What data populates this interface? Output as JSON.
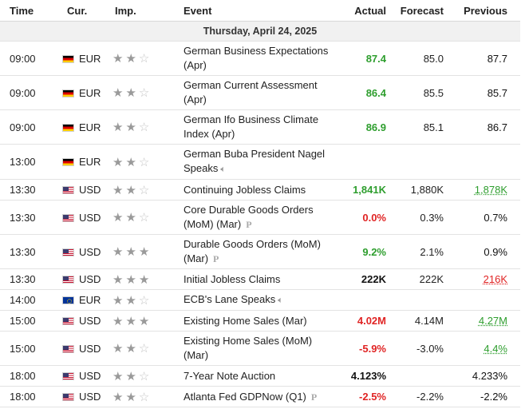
{
  "headers": {
    "time": "Time",
    "currency": "Cur.",
    "importance": "Imp.",
    "event": "Event",
    "actual": "Actual",
    "forecast": "Forecast",
    "previous": "Previous"
  },
  "day_label": "Thursday, April 24, 2025",
  "colors": {
    "positive": "#2e9e2e",
    "negative": "#e02424",
    "star_on": "#9a9a9a",
    "star_off": "#c4c4c4"
  },
  "rows": [
    {
      "time": "09:00",
      "flag": "germany-flag-icon",
      "currency": "EUR",
      "stars": 2,
      "event_line1": "German Business Expectations",
      "event_line2": "(Apr)",
      "icon": "",
      "actual": "87.4",
      "actual_color": "green",
      "forecast": "85.0",
      "previous": "87.7",
      "previous_style": "black"
    },
    {
      "time": "09:00",
      "flag": "germany-flag-icon",
      "currency": "EUR",
      "stars": 2,
      "event_line1": "German Current Assessment",
      "event_line2": "(Apr)",
      "icon": "",
      "actual": "86.4",
      "actual_color": "green",
      "forecast": "85.5",
      "previous": "85.7",
      "previous_style": "black"
    },
    {
      "time": "09:00",
      "flag": "germany-flag-icon",
      "currency": "EUR",
      "stars": 2,
      "event_line1": "German Ifo Business Climate",
      "event_line2": "Index (Apr)",
      "icon": "",
      "actual": "86.9",
      "actual_color": "green",
      "forecast": "85.1",
      "previous": "86.7",
      "previous_style": "black"
    },
    {
      "time": "13:00",
      "flag": "germany-flag-icon",
      "currency": "EUR",
      "stars": 2,
      "event_line1": "German Buba President Nagel",
      "event_line2": "Speaks",
      "icon": "speaker",
      "actual": "",
      "actual_color": "black",
      "forecast": "",
      "previous": "",
      "previous_style": "black"
    },
    {
      "time": "13:30",
      "flag": "us-flag-icon",
      "currency": "USD",
      "stars": 2,
      "event_line1": "Continuing Jobless Claims",
      "event_line2": "",
      "icon": "",
      "actual": "1,841K",
      "actual_color": "green",
      "forecast": "1,880K",
      "previous": "1,878K",
      "previous_style": "ul-green"
    },
    {
      "time": "13:30",
      "flag": "us-flag-icon",
      "currency": "USD",
      "stars": 2,
      "event_line1": "Core Durable Goods Orders",
      "event_line2": "(MoM) (Mar)",
      "icon": "prelim",
      "actual": "0.0%",
      "actual_color": "red",
      "forecast": "0.3%",
      "previous": "0.7%",
      "previous_style": "black"
    },
    {
      "time": "13:30",
      "flag": "us-flag-icon",
      "currency": "USD",
      "stars": 3,
      "event_line1": "Durable Goods Orders (MoM)",
      "event_line2": "(Mar)",
      "icon": "prelim",
      "actual": "9.2%",
      "actual_color": "green",
      "forecast": "2.1%",
      "previous": "0.9%",
      "previous_style": "black"
    },
    {
      "time": "13:30",
      "flag": "us-flag-icon",
      "currency": "USD",
      "stars": 3,
      "event_line1": "Initial Jobless Claims",
      "event_line2": "",
      "icon": "",
      "actual": "222K",
      "actual_color": "black",
      "forecast": "222K",
      "previous": "216K",
      "previous_style": "ul-red"
    },
    {
      "time": "14:00",
      "flag": "eu-flag-icon",
      "currency": "EUR",
      "stars": 2,
      "event_line1": "ECB's Lane Speaks",
      "event_line2": "",
      "icon": "speaker",
      "actual": "",
      "actual_color": "black",
      "forecast": "",
      "previous": "",
      "previous_style": "black"
    },
    {
      "time": "15:00",
      "flag": "us-flag-icon",
      "currency": "USD",
      "stars": 3,
      "event_line1": "Existing Home Sales (Mar)",
      "event_line2": "",
      "icon": "",
      "actual": "4.02M",
      "actual_color": "red",
      "forecast": "4.14M",
      "previous": "4.27M",
      "previous_style": "ul-green"
    },
    {
      "time": "15:00",
      "flag": "us-flag-icon",
      "currency": "USD",
      "stars": 2,
      "event_line1": "Existing Home Sales (MoM)",
      "event_line2": "(Mar)",
      "icon": "",
      "actual": "-5.9%",
      "actual_color": "red",
      "forecast": "-3.0%",
      "previous": "4.4%",
      "previous_style": "ul-green"
    },
    {
      "time": "18:00",
      "flag": "us-flag-icon",
      "currency": "USD",
      "stars": 2,
      "event_line1": "7-Year Note Auction",
      "event_line2": "",
      "icon": "",
      "actual": "4.123%",
      "actual_color": "black",
      "forecast": "",
      "previous": "4.233%",
      "previous_style": "black"
    },
    {
      "time": "18:00",
      "flag": "us-flag-icon",
      "currency": "USD",
      "stars": 2,
      "event_line1": "Atlanta Fed GDPNow (Q1)",
      "event_line2": "",
      "icon": "prelim",
      "actual": "-2.5%",
      "actual_color": "red",
      "forecast": "-2.2%",
      "previous": "-2.2%",
      "previous_style": "black"
    }
  ]
}
